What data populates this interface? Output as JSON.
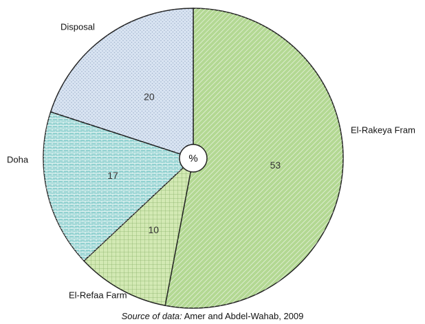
{
  "chart_data": {
    "type": "pie",
    "center_label": "%",
    "source_label": "Source of data:",
    "source": "Amer and Abdel-Wahab, 2009",
    "categories": [
      "El-Rakeya Fram",
      "El-Refaa Farm",
      "Doha",
      "Disposal"
    ],
    "values": [
      53,
      10,
      17,
      20
    ],
    "colors": [
      "#b3d893",
      "#d3e9b4",
      "#8fd0cf",
      "#d9e4f2"
    ]
  }
}
